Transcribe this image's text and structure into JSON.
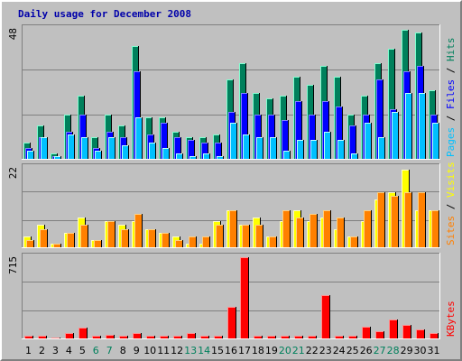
{
  "chart_data": {
    "type": "bar",
    "title": "Daily usage for December 2008",
    "categories": [
      "1",
      "2",
      "3",
      "4",
      "5",
      "6",
      "7",
      "8",
      "9",
      "10",
      "11",
      "12",
      "13",
      "14",
      "15",
      "16",
      "17",
      "18",
      "19",
      "20",
      "21",
      "22",
      "23",
      "24",
      "25",
      "26",
      "27",
      "28",
      "29",
      "30",
      "31"
    ],
    "weekend_days": [
      "6",
      "7",
      "13",
      "14",
      "20",
      "21",
      "27",
      "28"
    ],
    "colors": {
      "hits": "#00805c",
      "files": "#0000ff",
      "pages": "#00c0ff",
      "visits": "#ffff00",
      "sites": "#ff8000",
      "kbytes": "#ff0000",
      "title": "#0000aa",
      "weekend_label": "#00805c",
      "weekday_label": "#000000"
    },
    "panels": [
      {
        "name": "usage",
        "ymax_label": "48",
        "ylim": [
          0,
          48
        ],
        "grid": true,
        "legend": "right-vertical",
        "legend_parts": [
          {
            "text": "Pages",
            "series": "pages"
          },
          {
            "text": " / ",
            "series": "sep"
          },
          {
            "text": "Files",
            "series": "files"
          },
          {
            "text": " / ",
            "series": "sep"
          },
          {
            "text": "Hits",
            "series": "hits"
          }
        ],
        "series": [
          {
            "name": "Hits",
            "key": "hits",
            "values": [
              6,
              12,
              2,
              16,
              23,
              8,
              16,
              12,
              41,
              15,
              15,
              10,
              8,
              8,
              9,
              29,
              35,
              24,
              22,
              23,
              30,
              27,
              34,
              30,
              16,
              23,
              35,
              40,
              47,
              46,
              25
            ]
          },
          {
            "name": "Files",
            "key": "files",
            "values": [
              4,
              8,
              1,
              10,
              16,
              4,
              10,
              8,
              32,
              9,
              13,
              8,
              7,
              6,
              6,
              17,
              24,
              16,
              16,
              14,
              21,
              16,
              21,
              19,
              12,
              16,
              29,
              18,
              32,
              34,
              16
            ]
          },
          {
            "name": "Pages",
            "key": "pages",
            "values": [
              3,
              8,
              1,
              9,
              8,
              3,
              8,
              5,
              15,
              6,
              4,
              2,
              1,
              2,
              1,
              13,
              9,
              8,
              8,
              3,
              7,
              7,
              10,
              7,
              2,
              13,
              8,
              17,
              24,
              24,
              13
            ]
          }
        ]
      },
      {
        "name": "visitors",
        "ymax_label": "22",
        "ylim": [
          0,
          22
        ],
        "grid": true,
        "legend": "right-vertical",
        "legend_parts": [
          {
            "text": "Sites",
            "series": "sites"
          },
          {
            "text": " / ",
            "series": "sep"
          },
          {
            "text": "Visits",
            "series": "visits"
          }
        ],
        "series": [
          {
            "name": "Visits",
            "key": "visits",
            "values": [
              3,
              6,
              1,
              4,
              8,
              2,
              7,
              6,
              7,
              5,
              4,
              3,
              1,
              1,
              7,
              10,
              6,
              8,
              3,
              7,
              10,
              7,
              8,
              5,
              3,
              7,
              13,
              15,
              21,
              10,
              10
            ]
          },
          {
            "name": "Sites",
            "key": "sites",
            "values": [
              2,
              5,
              1,
              4,
              6,
              2,
              7,
              5,
              9,
              5,
              4,
              2,
              3,
              3,
              6,
              10,
              6,
              6,
              3,
              10,
              8,
              9,
              10,
              8,
              3,
              10,
              15,
              14,
              15,
              15,
              10
            ]
          }
        ]
      },
      {
        "name": "traffic",
        "ymax_label": "715",
        "ylim": [
          0,
          715
        ],
        "grid": true,
        "legend": "right-vertical",
        "legend_parts": [
          {
            "text": "KBytes",
            "series": "kbytes"
          }
        ],
        "series": [
          {
            "name": "KBytes",
            "key": "kbytes",
            "values": [
              20,
              20,
              8,
              50,
              90,
              20,
              30,
              20,
              45,
              20,
              20,
              20,
              50,
              25,
              20,
              270,
              700,
              20,
              20,
              20,
              20,
              20,
              370,
              20,
              20,
              100,
              60,
              160,
              120,
              80,
              50
            ]
          }
        ]
      }
    ]
  }
}
